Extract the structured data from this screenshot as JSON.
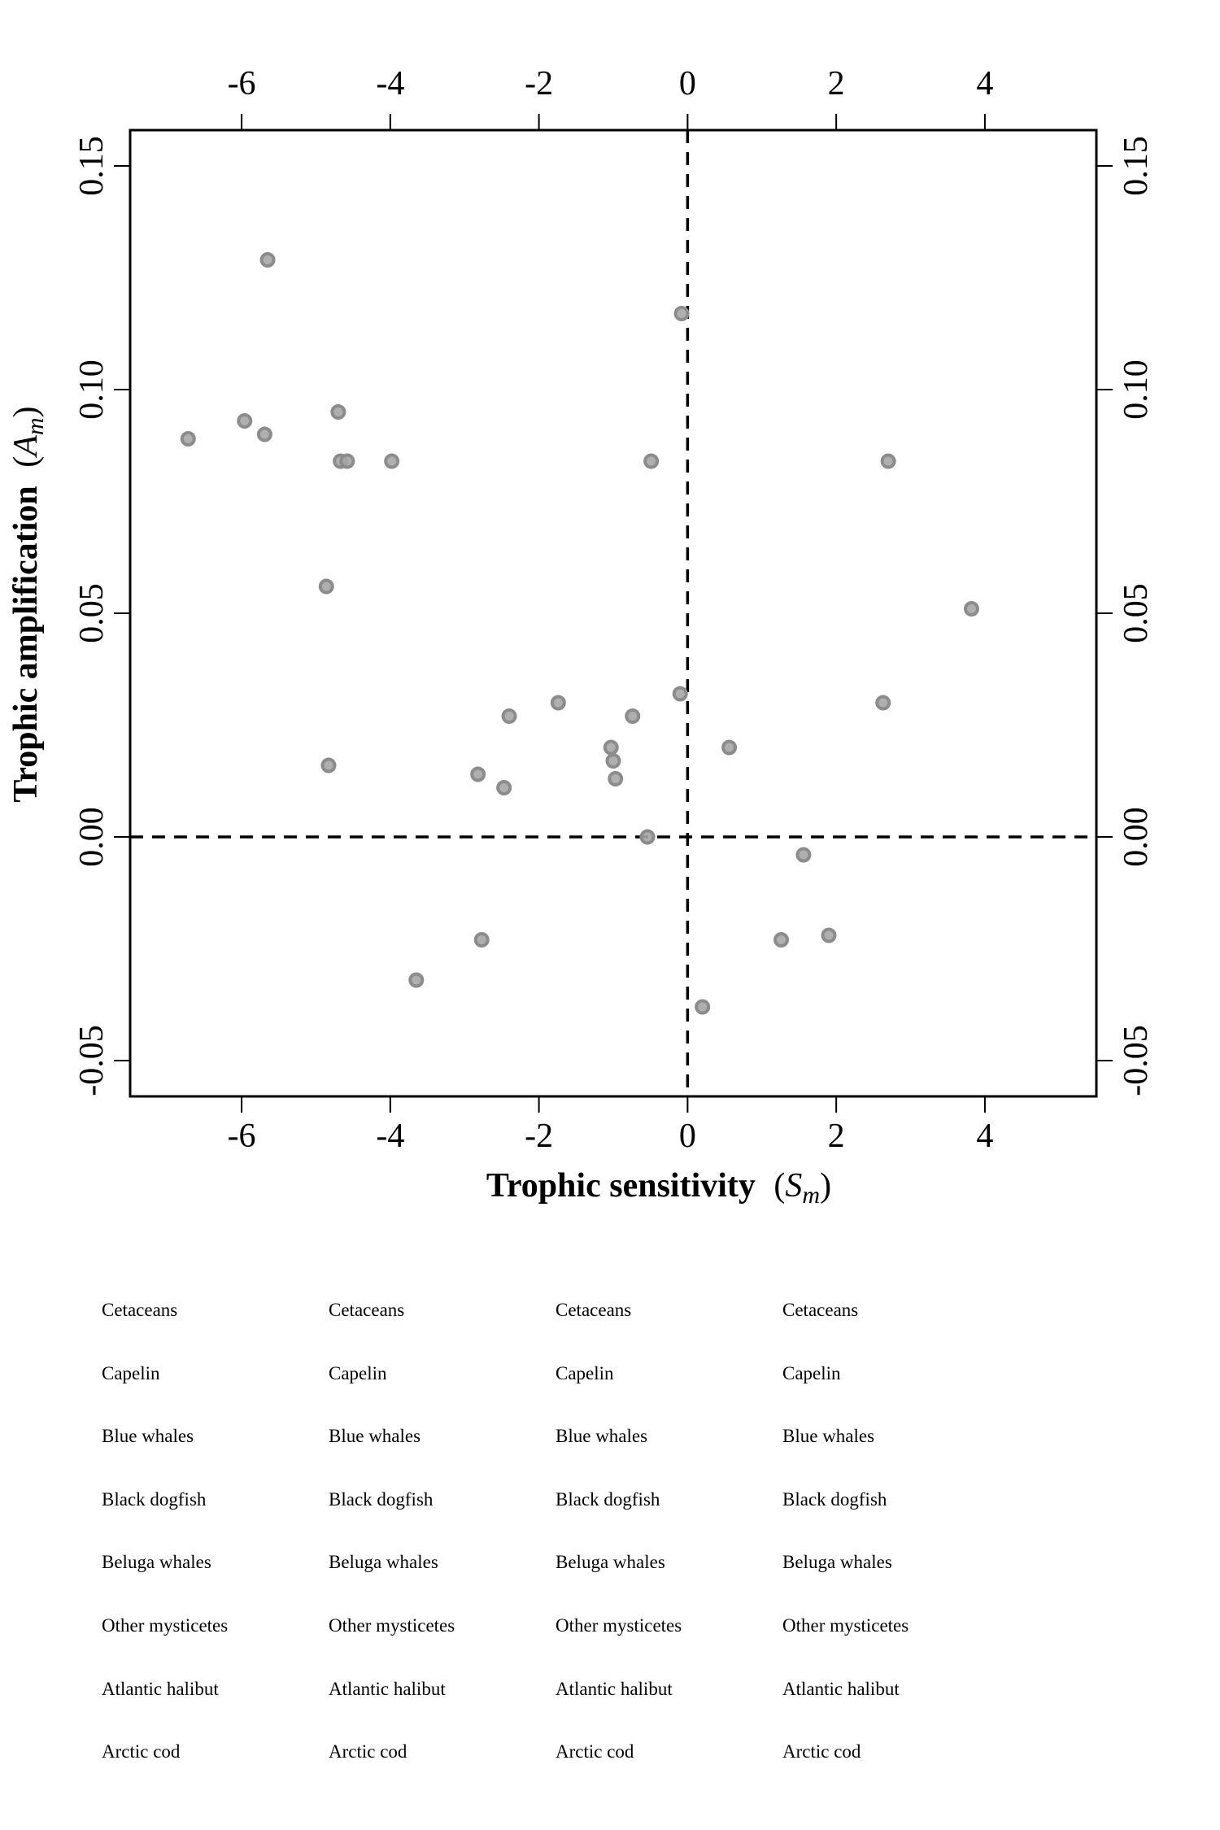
{
  "chart_data": {
    "type": "scatter",
    "xlabel": {
      "main": "Trophic sensitivity",
      "open": "(",
      "symbol": "S",
      "sub": "m",
      "close": ")"
    },
    "ylabel": {
      "main": "Trophic amplification",
      "open": "(",
      "symbol": "A",
      "sub": "m",
      "close": ")"
    },
    "xlim": [
      -7.5,
      5.5
    ],
    "ylim": [
      -0.058,
      0.158
    ],
    "x_ticks": [
      -6,
      -4,
      -2,
      0,
      2,
      4
    ],
    "x_tick_labels": [
      "-6",
      "-4",
      "-2",
      "0",
      "2",
      "4"
    ],
    "y_ticks": [
      -0.05,
      0,
      0.05,
      0.1,
      0.15
    ],
    "y_tick_labels": [
      "-0.05",
      "0.00",
      "0.05",
      "0.10",
      "0.15"
    ],
    "reference_lines": {
      "x": 0,
      "y": 0,
      "style": "dashed"
    },
    "point_color": "#8c8c8c",
    "point_fill": "#a6a6a6",
    "points": [
      {
        "x": -5.65,
        "y": 0.129
      },
      {
        "x": -0.08,
        "y": 0.117
      },
      {
        "x": -6.72,
        "y": 0.089
      },
      {
        "x": -5.96,
        "y": 0.093
      },
      {
        "x": -5.69,
        "y": 0.09
      },
      {
        "x": -4.7,
        "y": 0.095
      },
      {
        "x": -4.67,
        "y": 0.084
      },
      {
        "x": -4.58,
        "y": 0.084
      },
      {
        "x": -3.98,
        "y": 0.084
      },
      {
        "x": -0.49,
        "y": 0.084
      },
      {
        "x": 2.7,
        "y": 0.084
      },
      {
        "x": -4.86,
        "y": 0.056
      },
      {
        "x": 3.82,
        "y": 0.051
      },
      {
        "x": -0.1,
        "y": 0.032
      },
      {
        "x": -2.4,
        "y": 0.027
      },
      {
        "x": -1.74,
        "y": 0.03
      },
      {
        "x": -0.74,
        "y": 0.027
      },
      {
        "x": 2.63,
        "y": 0.03
      },
      {
        "x": -1.03,
        "y": 0.02
      },
      {
        "x": 0.56,
        "y": 0.02
      },
      {
        "x": -1.0,
        "y": 0.017
      },
      {
        "x": -0.97,
        "y": 0.013
      },
      {
        "x": -4.83,
        "y": 0.016
      },
      {
        "x": -2.82,
        "y": 0.014
      },
      {
        "x": -2.47,
        "y": 0.011
      },
      {
        "x": -0.54,
        "y": 0.0
      },
      {
        "x": 1.56,
        "y": -0.004
      },
      {
        "x": -2.77,
        "y": -0.023
      },
      {
        "x": 1.26,
        "y": -0.023
      },
      {
        "x": 1.9,
        "y": -0.022
      },
      {
        "x": -3.65,
        "y": -0.032
      },
      {
        "x": 0.2,
        "y": -0.038
      }
    ]
  },
  "legend": {
    "columns": [
      [
        "Cetaceans",
        "Capelin",
        "Blue whales",
        "Black dogfish",
        "Beluga whales",
        "Other mysticetes",
        "Atlantic halibut",
        "Arctic cod"
      ],
      [
        "Cetaceans",
        "Capelin",
        "Blue whales",
        "Black dogfish",
        "Beluga whales",
        "Other mysticetes",
        "Atlantic halibut",
        "Arctic cod"
      ],
      [
        "Cetaceans",
        "Capelin",
        "Blue whales",
        "Black dogfish",
        "Beluga whales",
        "Other mysticetes",
        "Atlantic halibut",
        "Arctic cod"
      ],
      [
        "Cetaceans",
        "Capelin",
        "Blue whales",
        "Black dogfish",
        "Beluga whales",
        "Other mysticetes",
        "Atlantic halibut",
        "Arctic cod"
      ]
    ]
  }
}
